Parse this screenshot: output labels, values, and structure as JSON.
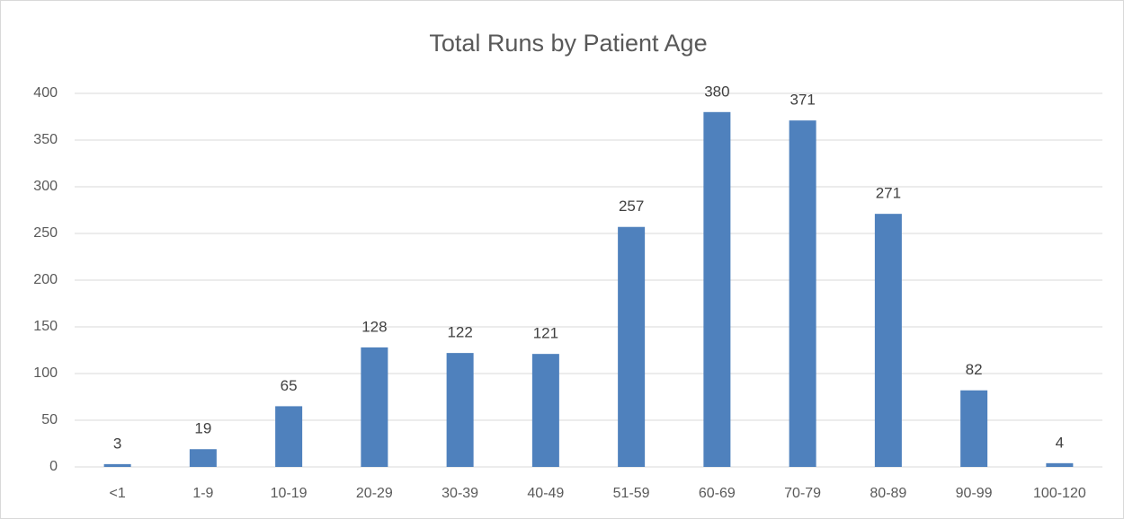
{
  "chart_data": {
    "type": "bar",
    "title": "Total Runs by Patient Age",
    "categories": [
      "<1",
      "1-9",
      "10-19",
      "20-29",
      "30-39",
      "40-49",
      "51-59",
      "60-69",
      "70-79",
      "80-89",
      "90-99",
      "100-120"
    ],
    "values": [
      3,
      19,
      65,
      128,
      122,
      121,
      257,
      380,
      371,
      271,
      82,
      4
    ],
    "color": "#4f81bd",
    "ylim": [
      0,
      400
    ],
    "yticks": [
      0,
      50,
      100,
      150,
      200,
      250,
      300,
      350,
      400
    ],
    "grid": true
  }
}
